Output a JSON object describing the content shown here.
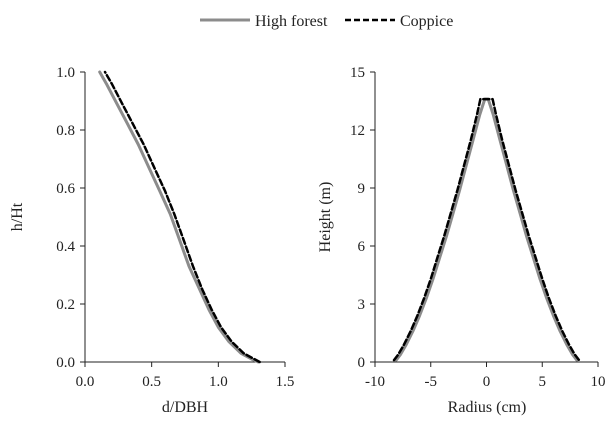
{
  "legend": [
    {
      "name": "High forest",
      "color": "#8c8c8c",
      "dash": "solid"
    },
    {
      "name": "Coppice",
      "color": "#000000",
      "dash": "dashed"
    }
  ],
  "chart_data": [
    {
      "type": "line",
      "xlabel": "d/DBH",
      "ylabel": "h/Ht",
      "xlim": [
        0,
        1.5
      ],
      "ylim": [
        0,
        1.0
      ],
      "xticks": [
        "0.0",
        "0.5",
        "1.0",
        "1.5"
      ],
      "yticks": [
        "0.0",
        "0.2",
        "0.4",
        "0.6",
        "0.8",
        "1.0"
      ],
      "series": [
        {
          "name": "High forest",
          "x": [
            1.3,
            1.25,
            1.17,
            1.08,
            1.0,
            0.93,
            0.86,
            0.78,
            0.71,
            0.64,
            0.56,
            0.48,
            0.4,
            0.32,
            0.24,
            0.16,
            0.11
          ],
          "y": [
            0.0,
            0.01,
            0.03,
            0.07,
            0.12,
            0.18,
            0.25,
            0.33,
            0.42,
            0.51,
            0.59,
            0.67,
            0.75,
            0.82,
            0.89,
            0.96,
            1.0
          ]
        },
        {
          "name": "Coppice",
          "x": [
            1.31,
            1.27,
            1.19,
            1.1,
            1.02,
            0.95,
            0.88,
            0.81,
            0.74,
            0.67,
            0.6,
            0.52,
            0.44,
            0.36,
            0.28,
            0.2,
            0.15
          ],
          "y": [
            0.0,
            0.01,
            0.03,
            0.07,
            0.12,
            0.18,
            0.25,
            0.33,
            0.42,
            0.51,
            0.59,
            0.67,
            0.75,
            0.82,
            0.89,
            0.96,
            1.0
          ]
        }
      ]
    },
    {
      "type": "line",
      "xlabel": "Radius (cm)",
      "ylabel": "Height (m)",
      "xlim": [
        -10,
        10
      ],
      "ylim": [
        0,
        15
      ],
      "xticks": [
        "-10",
        "-5",
        "0",
        "5",
        "10"
      ],
      "yticks": [
        "0",
        "3",
        "6",
        "9",
        "12",
        "15"
      ],
      "series": [
        {
          "name": "High forest",
          "x": [
            -8.1,
            -7.7,
            -7.2,
            -6.6,
            -6.0,
            -5.4,
            -4.8,
            -4.2,
            -3.6,
            -3.0,
            -2.4,
            -1.8,
            -1.2,
            -0.6,
            -0.15,
            0.15,
            0.6,
            1.2,
            1.8,
            2.4,
            3.0,
            3.6,
            4.2,
            4.8,
            5.4,
            6.0,
            6.6,
            7.2,
            7.7,
            8.1
          ],
          "y": [
            0.1,
            0.4,
            0.9,
            1.6,
            2.4,
            3.3,
            4.3,
            5.4,
            6.5,
            7.7,
            8.9,
            10.2,
            11.5,
            12.8,
            13.6,
            13.6,
            12.8,
            11.5,
            10.2,
            8.9,
            7.7,
            6.5,
            5.4,
            4.3,
            3.3,
            2.4,
            1.6,
            0.9,
            0.4,
            0.1
          ]
        },
        {
          "name": "Coppice",
          "x": [
            -8.3,
            -7.9,
            -7.4,
            -6.8,
            -6.2,
            -5.6,
            -5.0,
            -4.4,
            -3.8,
            -3.2,
            -2.6,
            -2.0,
            -1.4,
            -0.85,
            -0.55,
            0.55,
            0.85,
            1.4,
            2.0,
            2.6,
            3.2,
            3.8,
            4.4,
            5.0,
            5.6,
            6.2,
            6.8,
            7.4,
            7.9,
            8.3
          ],
          "y": [
            0.1,
            0.4,
            0.9,
            1.6,
            2.4,
            3.3,
            4.3,
            5.4,
            6.5,
            7.7,
            8.9,
            10.2,
            11.5,
            12.8,
            13.6,
            13.6,
            12.8,
            11.5,
            10.2,
            8.9,
            7.7,
            6.5,
            5.4,
            4.3,
            3.3,
            2.4,
            1.6,
            0.9,
            0.4,
            0.1
          ]
        }
      ]
    }
  ]
}
